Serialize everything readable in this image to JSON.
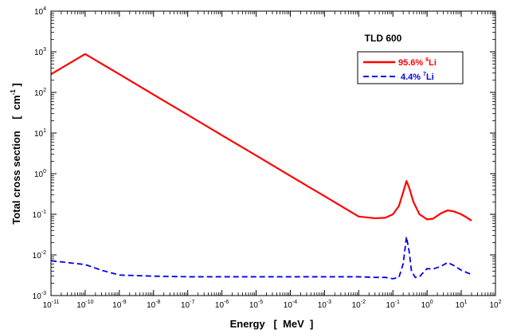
{
  "chart_data": {
    "type": "line",
    "title": "TLD 600",
    "xlabel": "Energy   [  MeV  ]",
    "ylabel": "Total cross section    [  cm",
    "ylabel_sup": "-1",
    "ylabel_end": " ]",
    "x_scale": "log",
    "y_scale": "log",
    "xlim": [
      1e-11,
      100
    ],
    "ylim": [
      0.001,
      10000
    ],
    "grid": false,
    "legend_position": "top-right",
    "x_ticks": [
      {
        "base": "10",
        "exp": "-11"
      },
      {
        "base": "10",
        "exp": "-10"
      },
      {
        "base": "10",
        "exp": "-9"
      },
      {
        "base": "10",
        "exp": "-8"
      },
      {
        "base": "10",
        "exp": "-7"
      },
      {
        "base": "10",
        "exp": "-6"
      },
      {
        "base": "10",
        "exp": "-5"
      },
      {
        "base": "10",
        "exp": "-4"
      },
      {
        "base": "10",
        "exp": "-3"
      },
      {
        "base": "10",
        "exp": "-2"
      },
      {
        "base": "10",
        "exp": "-1"
      },
      {
        "base": "10",
        "exp": "0"
      },
      {
        "base": "10",
        "exp": "1"
      },
      {
        "base": "10",
        "exp": "2"
      }
    ],
    "y_ticks": [
      {
        "base": "10",
        "exp": "-3"
      },
      {
        "base": "10",
        "exp": "-2"
      },
      {
        "base": "10",
        "exp": "-1"
      },
      {
        "base": "10",
        "exp": "0"
      },
      {
        "base": "10",
        "exp": "1"
      },
      {
        "base": "10",
        "exp": "2"
      },
      {
        "base": "10",
        "exp": "3"
      },
      {
        "base": "10",
        "exp": "4"
      }
    ],
    "series": [
      {
        "label_text": "95.6% ",
        "label_sup": "6",
        "label_end": "Li",
        "color": "#ff0000",
        "dash": "solid",
        "x": [
          1e-11,
          1e-10,
          1e-09,
          1e-08,
          1e-07,
          1e-06,
          1e-05,
          0.0001,
          0.001,
          0.01,
          0.03,
          0.06,
          0.1,
          0.15,
          0.2,
          0.25,
          0.3,
          0.4,
          0.6,
          1.0,
          1.5,
          2.5,
          4.0,
          6.0,
          10,
          15,
          20
        ],
        "y": [
          2.8,
          8.8,
          2.8,
          0.88,
          0.28,
          0.088,
          0.028,
          0.0088,
          0.0028,
          0.00088,
          0.0008,
          0.00082,
          0.001,
          0.0016,
          0.0035,
          0.0066,
          0.0045,
          0.002,
          0.001,
          0.00075,
          0.00078,
          0.00105,
          0.00125,
          0.00118,
          0.001,
          0.00082,
          0.0007
        ],
        "y_scale_factor": 100
      },
      {
        "label_text": "4.4%  ",
        "label_sup": "7",
        "label_end": "Li",
        "color": "#0000ee",
        "dash": "dashed",
        "x": [
          1e-11,
          1e-10,
          3e-10,
          1e-09,
          1e-08,
          1e-07,
          1e-06,
          1e-05,
          0.0001,
          0.001,
          0.01,
          0.03,
          0.06,
          0.1,
          0.15,
          0.2,
          0.25,
          0.3,
          0.35,
          0.45,
          0.6,
          0.8,
          1.0,
          1.5,
          2.5,
          4.0,
          6.0,
          10,
          20
        ],
        "y": [
          0.0072,
          0.0058,
          0.0042,
          0.0032,
          0.003,
          0.0029,
          0.0029,
          0.0029,
          0.0029,
          0.0029,
          0.0029,
          0.0028,
          0.0028,
          0.0026,
          0.0028,
          0.006,
          0.028,
          0.012,
          0.004,
          0.0028,
          0.0029,
          0.0038,
          0.0046,
          0.0045,
          0.0052,
          0.0065,
          0.0055,
          0.0042,
          0.0033
        ]
      }
    ]
  }
}
